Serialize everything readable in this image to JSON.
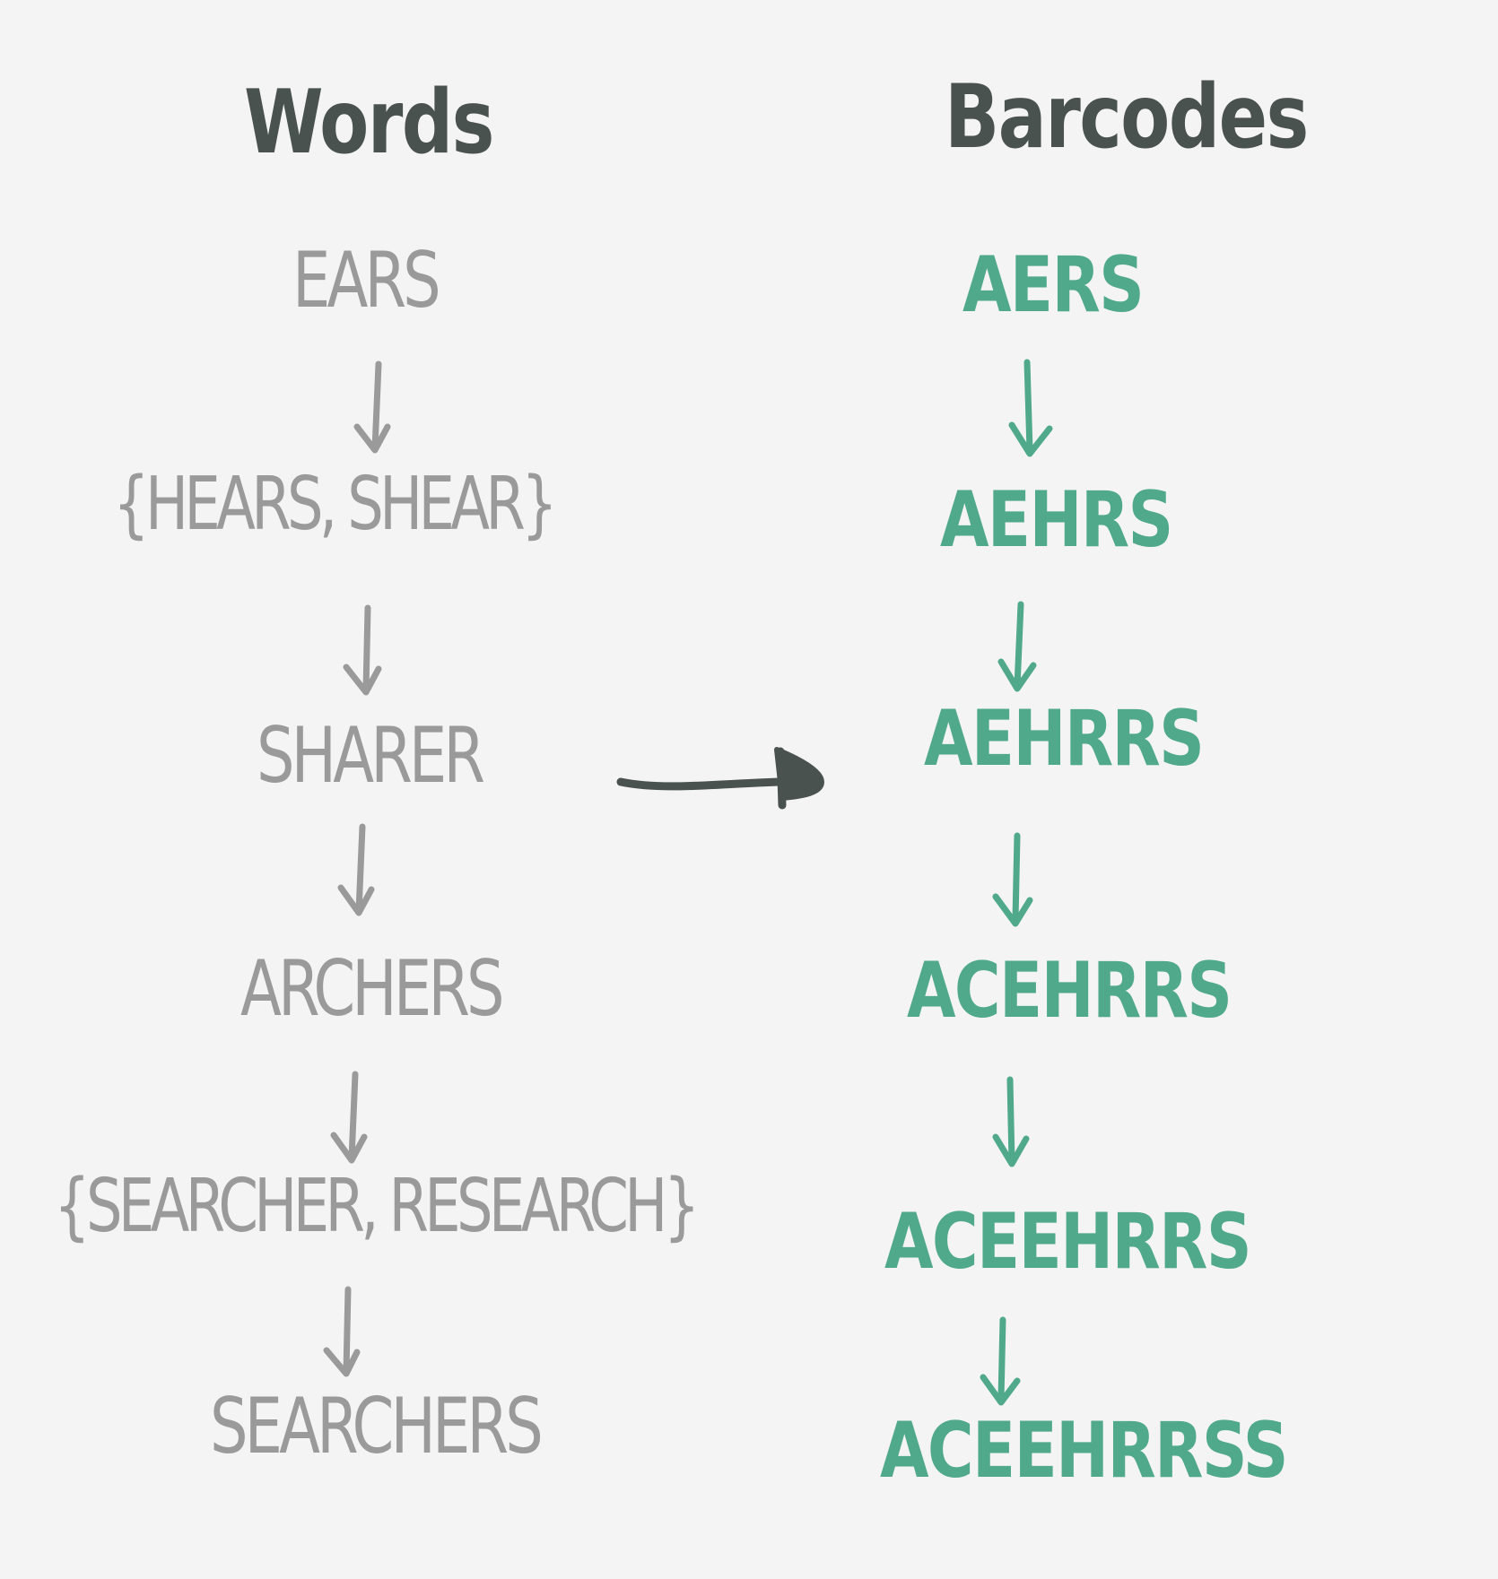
{
  "headers": {
    "words": "Words",
    "barcodes": "Barcodes"
  },
  "words": [
    "EARS",
    "{HEARS, SHEAR}",
    "SHARER",
    "ARCHERS",
    "{SEARCHER, RESEARCH}",
    "SEARCHERS"
  ],
  "barcodes": [
    "AERS",
    "AEHRS",
    "AEHRRS",
    "ACEHRRS",
    "ACEEHRRS",
    "ACEEHRRSS"
  ],
  "colors": {
    "background": "#f4f4f4",
    "header": "#4a5250",
    "words": "#9a9a9a",
    "barcodes": "#4fa98a",
    "connector_arrow": "#4a5250"
  }
}
